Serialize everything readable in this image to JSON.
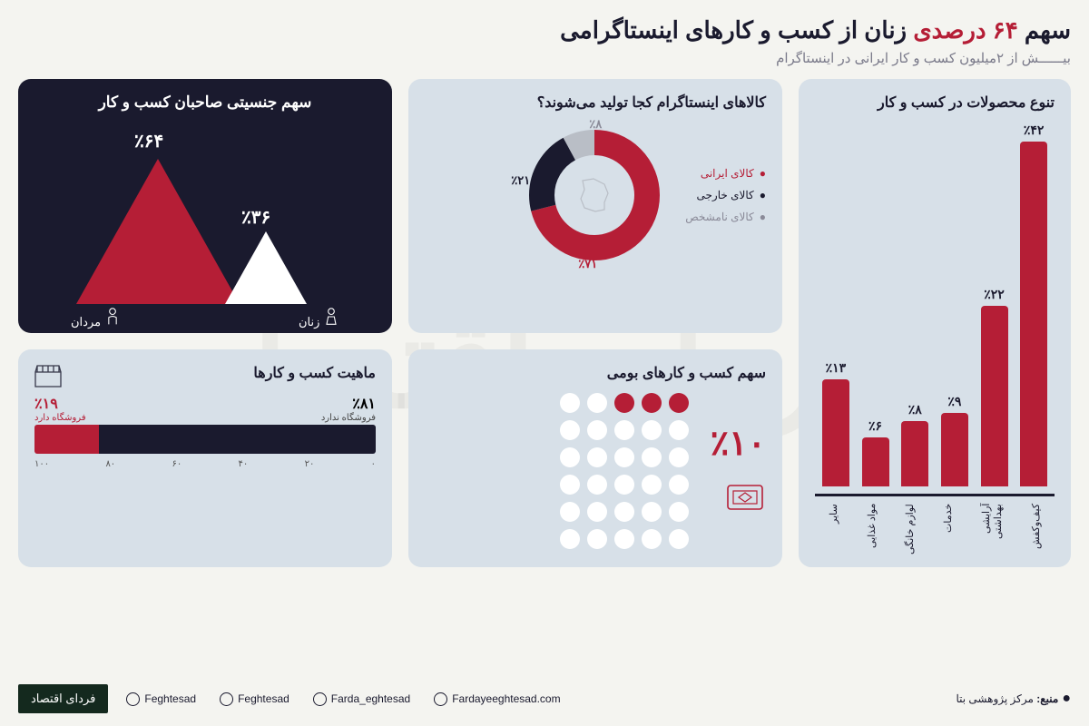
{
  "colors": {
    "red": "#b51e36",
    "navy": "#1a1a2e",
    "card": "#d7e0e8",
    "bg": "#f4f4f0",
    "grey": "#8a8a98",
    "white": "#ffffff"
  },
  "header": {
    "title_pre": "سهم ",
    "title_red": "۶۴ درصدی ",
    "title_post": "زنان از کسب و کارهای اینستاگرامی",
    "subtitle": "بیــــــش از ۲میلیون کسب و کار ایرانی در اینستاگرام"
  },
  "barchart": {
    "title": "تنوع محصولات در کسب و کار",
    "max": 42,
    "bars": [
      {
        "label": "کیف‌وکفش",
        "value": 42,
        "text": "٪۴۲"
      },
      {
        "label": "آرایشی بهداشتی",
        "value": 22,
        "text": "٪۲۲"
      },
      {
        "label": "خدمات",
        "value": 9,
        "text": "٪۹"
      },
      {
        "label": "لوازم خانگی",
        "value": 8,
        "text": "٪۸"
      },
      {
        "label": "مواد غذایی",
        "value": 6,
        "text": "٪۶"
      },
      {
        "label": "سایر",
        "value": 13,
        "text": "٪۱۳"
      }
    ]
  },
  "donut": {
    "title": "کالاهای اینستاگرام کجا تولید می‌شوند؟",
    "segments": [
      {
        "label": "کالای ایرانی",
        "value": 71,
        "text": "٪۷۱",
        "color": "#b51e36"
      },
      {
        "label": "کالای خارجی",
        "value": 21,
        "text": "٪۲۱",
        "color": "#1a1a2e"
      },
      {
        "label": "کالای نامشخص",
        "value": 8,
        "text": "٪۸",
        "color": "#b9bec6"
      }
    ]
  },
  "triangles": {
    "title": "سهم جنسیتی صاحبان کسب و کار",
    "big": {
      "value": 64,
      "text": "٪۶۴",
      "label": "زنان"
    },
    "small": {
      "value": 36,
      "text": "٪۳۶",
      "label": "مردان"
    }
  },
  "dots": {
    "title": "سهم کسب و کارهای بومی",
    "value_text": "٪۱۰",
    "total": 30,
    "filled": 3,
    "cols": 5
  },
  "hbar": {
    "title": "ماهیت کسب و کارها",
    "right": {
      "value": 81,
      "text": "٪۸۱",
      "label": "فروشگاه ندارد"
    },
    "left": {
      "value": 19,
      "text": "٪۱۹",
      "label": "فروشگاه دارد"
    },
    "ticks": [
      "۰",
      "۲۰",
      "۴۰",
      "۶۰",
      "۸۰",
      "۱۰۰"
    ]
  },
  "footer": {
    "source_label": "منبع:",
    "source": "مرکز پژوهشی بتا",
    "socials": [
      {
        "icon": "twitter",
        "handle": "Feghtesad"
      },
      {
        "icon": "telegram",
        "handle": "Feghtesad"
      },
      {
        "icon": "instagram",
        "handle": "Farda_eghtesad"
      },
      {
        "icon": "web",
        "handle": "Fardayeeghtesad.com"
      }
    ],
    "logo": "فردای اقتصاد"
  },
  "watermark": "فردای اقتصاد"
}
